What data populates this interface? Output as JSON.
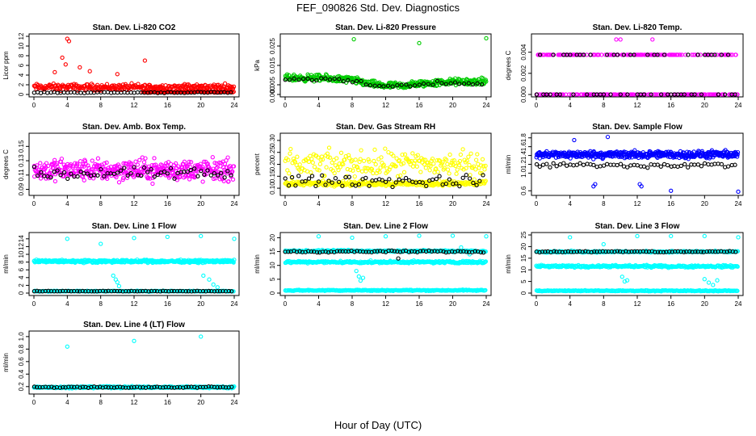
{
  "figure": {
    "title": "FEF_090826  Std. Dev. Diagnostics",
    "xlabel": "Hour of Day (UTC)"
  },
  "chart_data": [
    {
      "type": "scatter",
      "title": "Stan. Dev. Li-820 CO2",
      "ylabel": "Licor ppm",
      "xlim": [
        0,
        24
      ],
      "xticks": [
        0,
        4,
        8,
        12,
        16,
        20,
        24
      ],
      "ylim": [
        0,
        12
      ],
      "yticks": [
        "0",
        "2",
        "4",
        "6",
        "8",
        "10",
        "12"
      ],
      "ytick_values": [
        0,
        2,
        4,
        6,
        8,
        10,
        12
      ],
      "series": [
        {
          "color": "#ff0000",
          "kind": "band",
          "center": 1.5,
          "spread": 1.0,
          "n": 300,
          "outliers": [
            [
              4,
              11.5
            ],
            [
              4.2,
              11.0
            ],
            [
              3.8,
              6.2
            ],
            [
              3.4,
              7.6
            ],
            [
              13.3,
              7.0
            ],
            [
              5.5,
              5.6
            ],
            [
              2.5,
              4.6
            ],
            [
              10,
              4.2
            ],
            [
              6.7,
              4.8
            ]
          ]
        },
        {
          "color": "#ff0000",
          "kind": "band",
          "center": 0.55,
          "spread": 0.2,
          "n": 100,
          "x_from": 13,
          "x_to": 24
        },
        {
          "color": "#000000",
          "kind": "band",
          "center": 0.4,
          "spread": 0.15,
          "n": 60
        }
      ]
    },
    {
      "type": "scatter",
      "title": "Stan. Dev. Li-820 Pressure",
      "ylabel": "kPa",
      "xlim": [
        0,
        24
      ],
      "xticks": [
        0,
        4,
        8,
        12,
        16,
        20,
        24
      ],
      "ylim": [
        0,
        0.03
      ],
      "yticks": [
        "0.000",
        "0.005",
        "0.015",
        "0.025"
      ],
      "ytick_values": [
        0,
        0.005,
        0.015,
        0.025
      ],
      "series": [
        {
          "color": "#00cc00",
          "kind": "profile",
          "profile": [
            [
              0,
              0.0085
            ],
            [
              4,
              0.0085
            ],
            [
              8,
              0.0075
            ],
            [
              10,
              0.0055
            ],
            [
              12,
              0.0045
            ],
            [
              14,
              0.0045
            ],
            [
              16,
              0.0055
            ],
            [
              20,
              0.0065
            ],
            [
              24,
              0.0065
            ]
          ],
          "spread": 0.0025,
          "n": 420,
          "outliers": [
            [
              8.2,
              0.0285
            ],
            [
              16,
              0.0265
            ],
            [
              24,
              0.029
            ]
          ]
        },
        {
          "color": "#000000",
          "kind": "profile",
          "profile": [
            [
              0,
              0.008
            ],
            [
              4,
              0.008
            ],
            [
              8,
              0.007
            ],
            [
              12,
              0.004
            ],
            [
              16,
              0.005
            ],
            [
              24,
              0.006
            ]
          ],
          "spread": 0.002,
          "n": 45
        }
      ]
    },
    {
      "type": "scatter",
      "title": "Stan. Dev. Li-820 Temp.",
      "ylabel": "degrees C",
      "xlim": [
        0,
        24
      ],
      "xticks": [
        0,
        4,
        8,
        12,
        16,
        20,
        24
      ],
      "ylim": [
        0,
        0.0055
      ],
      "yticks": [
        "0.000",
        "0.002",
        "0.004"
      ],
      "ytick_values": [
        0,
        0.002,
        0.004
      ],
      "series": [
        {
          "color": "#ff00ff",
          "kind": "levels",
          "levels": [
            0,
            0.00375
          ],
          "n": 260,
          "outliers": [
            [
              9.5,
              0.0052
            ],
            [
              10,
              0.0052
            ],
            [
              13.8,
              0.0052
            ]
          ]
        },
        {
          "color": "#000000",
          "kind": "levels",
          "levels": [
            0,
            0.00375
          ],
          "n": 60
        }
      ]
    },
    {
      "type": "scatter",
      "title": "Stan. Dev. Amb. Box Temp.",
      "ylabel": "degrees C",
      "xlim": [
        0,
        24
      ],
      "xticks": [
        0,
        4,
        8,
        12,
        16,
        20,
        24
      ],
      "ylim": [
        0.085,
        0.165
      ],
      "yticks": [
        "0.09",
        "0.11",
        "0.13",
        "0.15"
      ],
      "ytick_values": [
        0.09,
        0.11,
        0.13,
        0.15
      ],
      "series": [
        {
          "color": "#ff00ff",
          "kind": "band",
          "center": 0.117,
          "spread": 0.022,
          "n": 420
        },
        {
          "color": "#000000",
          "kind": "band",
          "center": 0.112,
          "spread": 0.012,
          "n": 60
        }
      ]
    },
    {
      "type": "scatter",
      "title": "Stan. Dev. Gas Stream RH",
      "ylabel": "percent",
      "xlim": [
        0,
        24
      ],
      "xticks": [
        0,
        4,
        8,
        12,
        16,
        20,
        24
      ],
      "ylim": [
        0.08,
        0.32
      ],
      "yticks": [
        "0.10",
        "0.15",
        "0.20",
        "0.25",
        "0.30"
      ],
      "ytick_values": [
        0.1,
        0.15,
        0.2,
        0.25,
        0.3
      ],
      "series": [
        {
          "color": "#ffff00",
          "kind": "band",
          "center": 0.12,
          "spread": 0.015,
          "n": 300
        },
        {
          "color": "#ffff00",
          "kind": "band",
          "center": 0.2,
          "spread": 0.08,
          "n": 220
        },
        {
          "color": "#000000",
          "kind": "band",
          "center": 0.13,
          "spread": 0.035,
          "n": 60
        }
      ]
    },
    {
      "type": "scatter",
      "title": "Stan. Dev. Sample Flow",
      "ylabel": "ml/min",
      "xlim": [
        0,
        24
      ],
      "xticks": [
        0,
        4,
        8,
        12,
        16,
        20,
        24
      ],
      "ylim": [
        0.55,
        1.85
      ],
      "yticks": [
        "0.6",
        "1.0",
        "1.2",
        "1.4",
        "1.6",
        "1.8"
      ],
      "ytick_values": [
        0.6,
        1.0,
        1.2,
        1.4,
        1.6,
        1.8
      ],
      "series": [
        {
          "color": "#0000ff",
          "kind": "band",
          "center": 1.42,
          "spread": 0.12,
          "n": 480,
          "outliers": [
            [
              6.8,
              0.7
            ],
            [
              7,
              0.75
            ],
            [
              8.5,
              1.82
            ],
            [
              12.3,
              0.75
            ],
            [
              12.5,
              0.7
            ],
            [
              16,
              0.6
            ],
            [
              24,
              0.58
            ],
            [
              4.5,
              1.75
            ]
          ]
        },
        {
          "color": "#000000",
          "kind": "band",
          "center": 1.18,
          "spread": 0.08,
          "n": 60
        }
      ]
    },
    {
      "type": "scatter",
      "title": "Stan. Dev. Line 1 Flow",
      "ylabel": "ml/min",
      "xlim": [
        0,
        24
      ],
      "xticks": [
        0,
        4,
        8,
        12,
        16,
        20,
        24
      ],
      "ylim": [
        0,
        15
      ],
      "yticks": [
        "0",
        "2",
        "4",
        "6",
        "8",
        "10",
        "12",
        "14"
      ],
      "ytick_values": [
        0,
        2,
        4,
        6,
        8,
        10,
        12,
        14
      ],
      "series": [
        {
          "color": "#00ffff",
          "kind": "band",
          "center": 8.2,
          "spread": 0.5,
          "n": 460,
          "outliers": [
            [
              4,
              14
            ],
            [
              8,
              12.7
            ],
            [
              12,
              14.2
            ],
            [
              16,
              14.5
            ],
            [
              20,
              14.7
            ],
            [
              24,
              14
            ],
            [
              9.5,
              4.5
            ],
            [
              10,
              2.8
            ],
            [
              9.8,
              3.5
            ],
            [
              10.2,
              1.8
            ],
            [
              21,
              3.5
            ],
            [
              21.5,
              2.2
            ],
            [
              22,
              1.5
            ],
            [
              20.3,
              4.5
            ]
          ]
        },
        {
          "color": "#00ffff",
          "kind": "band",
          "center": 0.5,
          "spread": 0.15,
          "n": 200
        },
        {
          "color": "#000000",
          "kind": "band",
          "center": 0.5,
          "spread": 0.1,
          "n": 70
        }
      ]
    },
    {
      "type": "scatter",
      "title": "Stan. Dev. Line 2 Flow",
      "ylabel": "ml/min",
      "xlim": [
        0,
        24
      ],
      "xticks": [
        0,
        4,
        8,
        12,
        16,
        20,
        24
      ],
      "ylim": [
        0,
        21
      ],
      "yticks": [
        "0",
        "5",
        "10",
        "15",
        "20"
      ],
      "ytick_values": [
        0,
        5,
        10,
        15,
        20
      ],
      "series": [
        {
          "color": "#00ffff",
          "kind": "band",
          "center": 15.2,
          "spread": 0.5,
          "n": 260
        },
        {
          "color": "#00ffff",
          "kind": "band",
          "center": 11.2,
          "spread": 0.6,
          "n": 280,
          "outliers": [
            [
              8.5,
              8
            ],
            [
              8.8,
              6
            ],
            [
              9,
              4.5
            ],
            [
              9.3,
              5.5
            ],
            [
              4,
              20.5
            ],
            [
              8,
              20
            ],
            [
              12,
              20.5
            ],
            [
              16,
              20.7
            ],
            [
              20,
              20.7
            ],
            [
              24,
              20.5
            ],
            [
              21,
              16.5
            ],
            [
              22,
              14
            ]
          ]
        },
        {
          "color": "#00ffff",
          "kind": "band",
          "center": 1.0,
          "spread": 0.3,
          "n": 220
        },
        {
          "color": "#000000",
          "kind": "band",
          "center": 15.0,
          "spread": 0.5,
          "n": 70,
          "outliers": [
            [
              13.5,
              12.5
            ]
          ]
        }
      ]
    },
    {
      "type": "scatter",
      "title": "Stan. Dev. Line 3 Flow",
      "ylabel": "ml/min",
      "xlim": [
        0,
        24
      ],
      "xticks": [
        0,
        4,
        8,
        12,
        16,
        20,
        24
      ],
      "ylim": [
        0,
        25
      ],
      "yticks": [
        "0",
        "5",
        "10",
        "15",
        "20",
        "25"
      ],
      "ytick_values": [
        0,
        5,
        10,
        15,
        20,
        25
      ],
      "series": [
        {
          "color": "#00ffff",
          "kind": "band",
          "center": 17.8,
          "spread": 0.5,
          "n": 260
        },
        {
          "color": "#00ffff",
          "kind": "band",
          "center": 11.5,
          "spread": 0.7,
          "n": 280,
          "outliers": [
            [
              10.2,
              7
            ],
            [
              10.5,
              5
            ],
            [
              10.8,
              5.5
            ],
            [
              20,
              6
            ],
            [
              20.5,
              4.5
            ],
            [
              21,
              3.5
            ],
            [
              21.5,
              5.5
            ],
            [
              4,
              24
            ],
            [
              8,
              21
            ],
            [
              12,
              24.5
            ],
            [
              16,
              24.5
            ],
            [
              20,
              24.5
            ],
            [
              24,
              24
            ]
          ]
        },
        {
          "color": "#00ffff",
          "kind": "band",
          "center": 1.0,
          "spread": 0.3,
          "n": 220
        },
        {
          "color": "#000000",
          "kind": "band",
          "center": 17.8,
          "spread": 0.4,
          "n": 70
        }
      ]
    },
    {
      "type": "scatter",
      "title": "Stan. Dev. Line 4 (LT) Flow",
      "ylabel": "ml/min",
      "xlim": [
        0,
        24
      ],
      "xticks": [
        0,
        4,
        8,
        12,
        16,
        20,
        24
      ],
      "ylim": [
        0.12,
        1.05
      ],
      "yticks": [
        "0.2",
        "0.4",
        "0.6",
        "0.8",
        "1.0"
      ],
      "ytick_values": [
        0.2,
        0.4,
        0.6,
        0.8,
        1.0
      ],
      "series": [
        {
          "color": "#00ffff",
          "kind": "band",
          "center": 0.19,
          "spread": 0.02,
          "n": 480,
          "outliers": [
            [
              4,
              0.84
            ],
            [
              12,
              0.93
            ],
            [
              20,
              1.0
            ]
          ]
        },
        {
          "color": "#000000",
          "kind": "band",
          "center": 0.19,
          "spread": 0.015,
          "n": 70
        }
      ]
    }
  ]
}
